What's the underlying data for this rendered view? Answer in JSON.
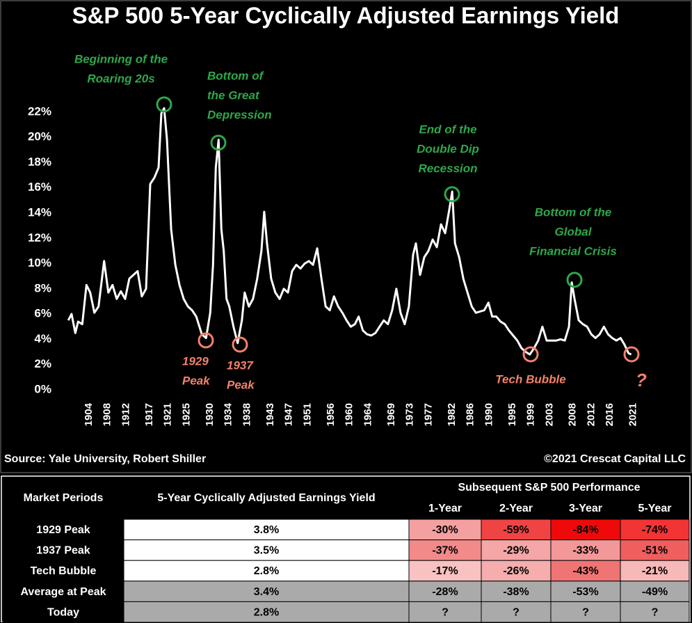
{
  "chart_data": {
    "type": "line",
    "title": "S&P 500 5-Year Cyclically Adjusted Earnings Yield",
    "x": [
      1899.7,
      1900.4,
      1901.2,
      1901.8,
      1902.7,
      1903.6,
      1904.4,
      1905.3,
      1906.2,
      1907.4,
      1908.3,
      1909.2,
      1910.1,
      1911.0,
      1911.9,
      1912.8,
      1913.7,
      1914.6,
      1915.5,
      1916.4,
      1917.3,
      1918.2,
      1919.1,
      1919.7,
      1920.3,
      1920.9,
      1921.8,
      1922.7,
      1923.6,
      1924.5,
      1925.4,
      1926.3,
      1927.2,
      1928.4,
      1929.3,
      1930.2,
      1930.8,
      1931.4,
      1932.0,
      1932.6,
      1933.1,
      1933.7,
      1934.3,
      1935.2,
      1936.1,
      1937.0,
      1937.6,
      1938.5,
      1939.4,
      1940.3,
      1941.2,
      1941.8,
      1942.4,
      1943.3,
      1944.2,
      1945.1,
      1946.0,
      1946.9,
      1947.8,
      1948.7,
      1949.6,
      1950.5,
      1951.4,
      1952.3,
      1953.2,
      1954.1,
      1955.0,
      1955.9,
      1956.8,
      1957.7,
      1958.6,
      1959.5,
      1960.4,
      1961.3,
      1962.1,
      1963.0,
      1963.9,
      1964.8,
      1965.7,
      1966.6,
      1967.5,
      1968.4,
      1969.3,
      1970.2,
      1971.1,
      1972.0,
      1972.9,
      1973.8,
      1974.4,
      1975.3,
      1976.2,
      1977.1,
      1978.0,
      1978.9,
      1979.8,
      1980.7,
      1981.6,
      1982.2,
      1982.8,
      1983.7,
      1984.6,
      1985.5,
      1986.4,
      1987.3,
      1988.2,
      1989.1,
      1990.0,
      1990.8,
      1991.7,
      1992.6,
      1993.5,
      1994.4,
      1995.3,
      1996.2,
      1997.1,
      1998.0,
      1998.9,
      1999.8,
      2000.7,
      2001.6,
      2002.5,
      2003.4,
      2004.6,
      2005.5,
      2006.4,
      2007.3,
      2007.9,
      2008.5,
      2009.4,
      2010.3,
      2011.2,
      2012.1,
      2013.0,
      2013.9,
      2014.8,
      2015.7,
      2016.6,
      2017.5,
      2018.4,
      2019.2,
      2020.1,
      2020.7
    ],
    "series": [
      {
        "name": "5-Year Cyclically Adjusted Earnings Yield",
        "color": "#ffffff",
        "values": [
          5.5,
          6.0,
          4.5,
          5.4,
          5.2,
          8.3,
          7.7,
          6.1,
          6.6,
          10.2,
          7.7,
          8.3,
          7.2,
          7.8,
          7.2,
          8.8,
          9.1,
          9.4,
          7.4,
          8.0,
          16.3,
          16.8,
          17.6,
          21.9,
          22.3,
          19.8,
          12.7,
          9.9,
          8.3,
          7.2,
          6.6,
          6.3,
          5.8,
          4.4,
          4.1,
          6.1,
          9.9,
          17.6,
          19.8,
          12.7,
          11.0,
          7.2,
          6.6,
          5.0,
          3.7,
          5.5,
          7.7,
          6.6,
          7.2,
          8.8,
          11.0,
          14.1,
          11.6,
          8.8,
          7.7,
          7.2,
          8.0,
          7.7,
          9.4,
          9.9,
          9.6,
          10.0,
          10.2,
          9.9,
          11.2,
          8.8,
          6.6,
          6.3,
          7.4,
          6.6,
          6.1,
          5.5,
          5.0,
          5.2,
          5.8,
          4.7,
          4.4,
          4.3,
          4.5,
          5.0,
          5.5,
          5.2,
          6.3,
          8.0,
          6.1,
          5.2,
          6.6,
          10.7,
          11.6,
          9.1,
          10.5,
          11.0,
          11.9,
          11.3,
          13.1,
          12.4,
          14.3,
          15.7,
          11.6,
          10.5,
          8.8,
          7.7,
          6.6,
          6.1,
          6.2,
          6.3,
          6.9,
          5.8,
          5.8,
          5.4,
          5.2,
          4.7,
          4.3,
          3.9,
          3.3,
          3.0,
          2.8,
          3.3,
          3.9,
          5.0,
          3.9,
          3.9,
          3.9,
          4.0,
          3.9,
          5.0,
          8.5,
          7.2,
          5.5,
          5.2,
          5.0,
          4.4,
          4.1,
          4.4,
          5.0,
          4.4,
          4.1,
          3.9,
          4.1,
          3.6,
          2.9,
          2.8
        ]
      }
    ],
    "xlim": [
      1899,
      2024
    ],
    "xticks": [
      1904,
      1908,
      1912,
      1917,
      1921,
      1925,
      1930,
      1934,
      1938,
      1943,
      1947,
      1951,
      1956,
      1960,
      1964,
      1969,
      1973,
      1977,
      1982,
      1986,
      1990,
      1995,
      1999,
      2003,
      2008,
      2012,
      2016,
      2021
    ],
    "ylim": [
      0,
      24
    ],
    "yticks": [
      {
        "value": 0,
        "label": "0%"
      },
      {
        "value": 2,
        "label": "2%"
      },
      {
        "value": 4,
        "label": "4%"
      },
      {
        "value": 6,
        "label": "6%"
      },
      {
        "value": 8,
        "label": "8%"
      },
      {
        "value": 10,
        "label": "10%"
      },
      {
        "value": 12,
        "label": "12%"
      },
      {
        "value": 14,
        "label": "14%"
      },
      {
        "value": 16,
        "label": "16%"
      },
      {
        "value": 18,
        "label": "18%"
      },
      {
        "value": 20,
        "label": "20%"
      },
      {
        "value": 22,
        "label": "22%"
      }
    ],
    "grid": false,
    "annotations": [
      {
        "lines": [
          "Beginning of the",
          "Roaring 20s"
        ],
        "color": "#2ea84a"
      },
      {
        "lines": [
          "Bottom of",
          "the Great",
          "Depression"
        ],
        "color": "#2ea84a"
      },
      {
        "lines": [
          "End of the",
          "Double Dip",
          "Recession"
        ],
        "color": "#2ea84a"
      },
      {
        "lines": [
          "Bottom of the",
          "Global",
          "Financial Crisis"
        ],
        "color": "#2ea84a"
      },
      {
        "lines": [
          "1929",
          "Peak"
        ],
        "color": "#f4826c"
      },
      {
        "lines": [
          "1937",
          "Peak"
        ],
        "color": "#f4826c"
      },
      {
        "lines": [
          "Tech Bubble"
        ],
        "color": "#f4826c"
      },
      {
        "lines": [
          "?"
        ],
        "color": "#f4826c"
      }
    ],
    "source": "Source: Yale University, Robert Shiller",
    "copyright": "©2021 Crescat Capital LLC"
  },
  "table": {
    "header": {
      "periods": "Market Periods",
      "yield": "5-Year Cyclically Adjusted Earnings Yield",
      "performance": "Subsequent S&P 500 Performance",
      "horizons": [
        "1-Year",
        "2-Year",
        "3-Year",
        "5-Year"
      ]
    },
    "rows": [
      [
        "1929 Peak",
        "3.8%",
        "-30%",
        "-59%",
        "-84%",
        "-74%"
      ],
      [
        "1937 Peak",
        "3.5%",
        "-37%",
        "-29%",
        "-33%",
        "-51%"
      ],
      [
        "Tech Bubble",
        "2.8%",
        "-17%",
        "-26%",
        "-43%",
        "-21%"
      ],
      [
        "Average at Peak",
        "3.4%",
        "-28%",
        "-38%",
        "-53%",
        "-49%"
      ],
      [
        "Today",
        "2.8%",
        "?",
        "?",
        "?",
        "?"
      ]
    ],
    "yield_colors": [
      "#ffffff",
      "#ffffff",
      "#ffffff",
      "#aaaaaa",
      "#aaaaaa"
    ],
    "cell_colors": [
      [
        "#f4a0a0",
        "#f04444",
        "#ee0a0a",
        "#f23434"
      ],
      [
        "#f28a8a",
        "#f5a6a6",
        "#f39898",
        "#f05e5e"
      ],
      [
        "#f8c2c2",
        "#f5adad",
        "#f07474",
        "#f7b8b8"
      ],
      [
        "#aaaaaa",
        "#aaaaaa",
        "#aaaaaa",
        "#aaaaaa"
      ],
      [
        "#aaaaaa",
        "#aaaaaa",
        "#aaaaaa",
        "#aaaaaa"
      ]
    ]
  }
}
